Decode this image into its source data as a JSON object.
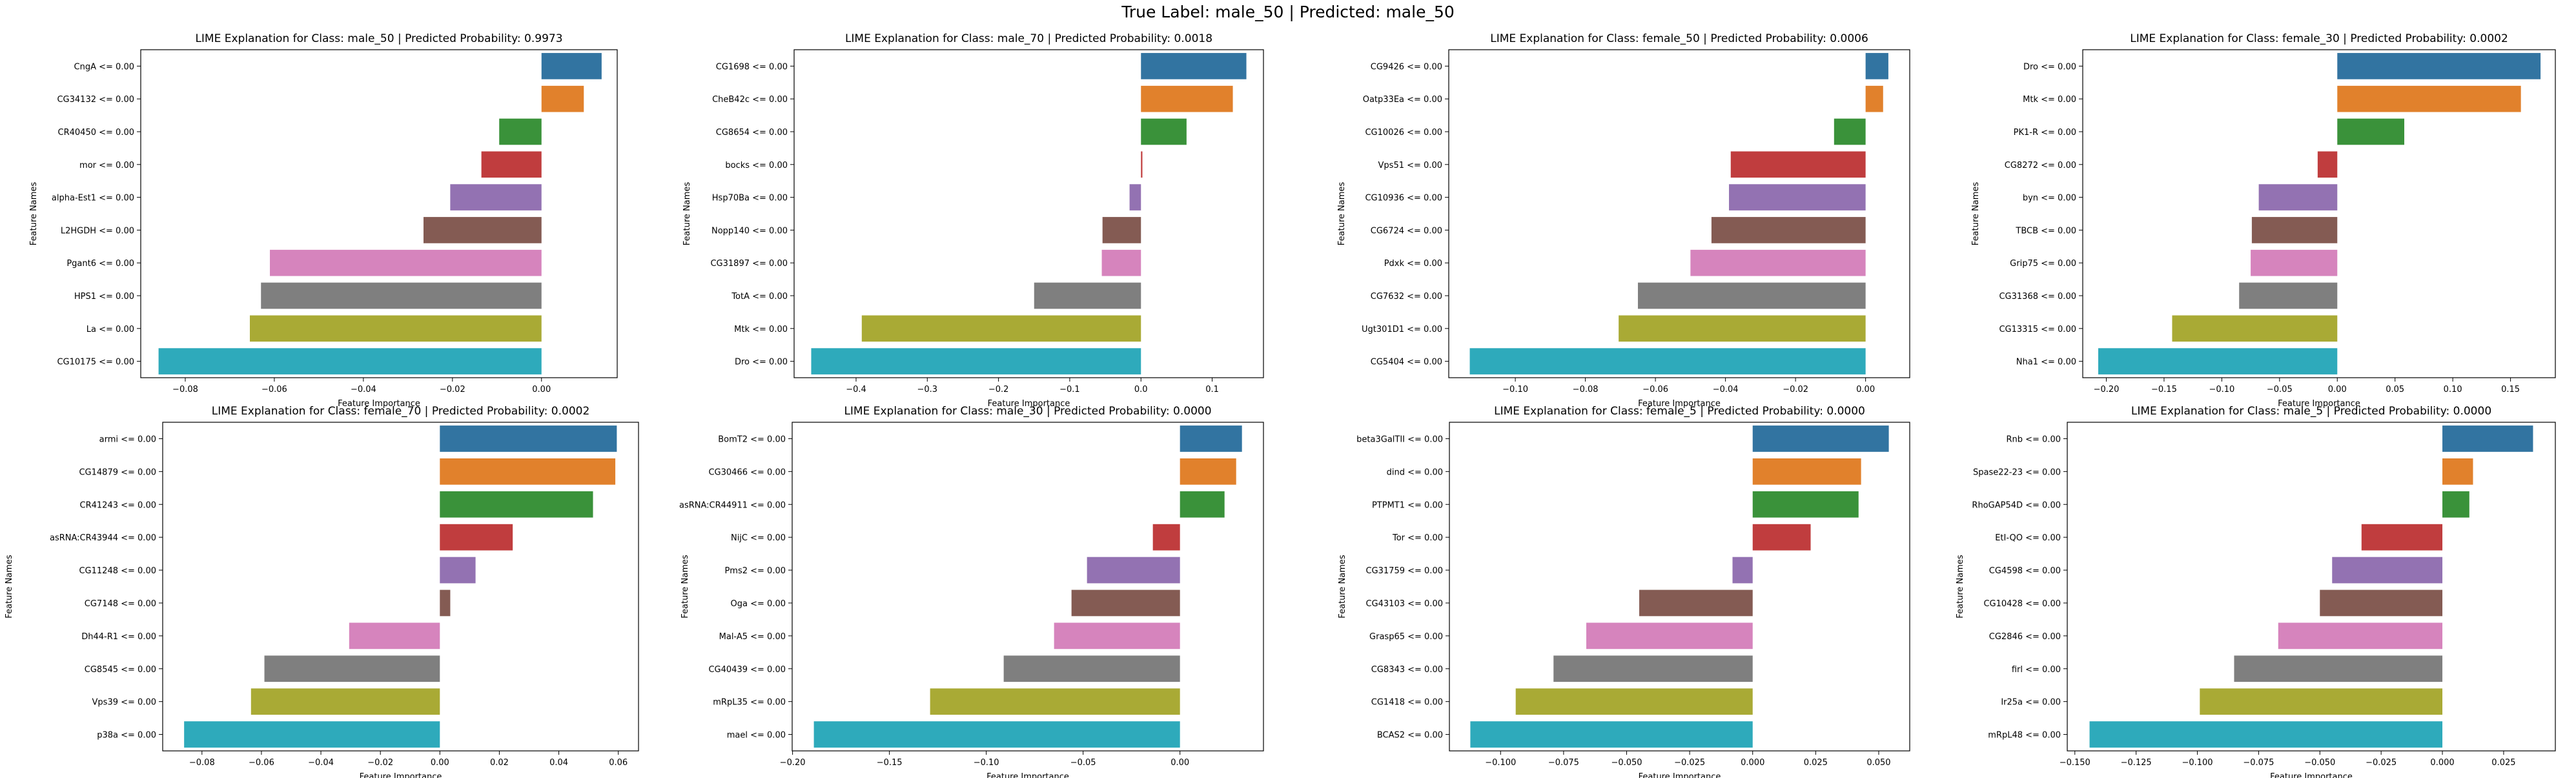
{
  "suptitle": "True Label: male_50 | Predicted: male_50",
  "colors": [
    "#3274a1",
    "#e1812c",
    "#3a923a",
    "#c03d3e",
    "#9372b2",
    "#845b53",
    "#d684bd",
    "#7f7f7f",
    "#a9aa35",
    "#2eaabb"
  ],
  "chart_data": [
    {
      "type": "bar",
      "orientation": "horizontal",
      "title": "LIME Explanation for Class: male_50 | Predicted Probability: 0.9973",
      "xlabel": "Feature Importance",
      "ylabel": "Feature Names",
      "categories": [
        "CngA <= 0.00",
        "CG34132 <= 0.00",
        "CR40450 <= 0.00",
        "mor <= 0.00",
        "alpha-Est1 <= 0.00",
        "L2HGDH <= 0.00",
        "Pgant6 <= 0.00",
        "HPS1 <= 0.00",
        "La <= 0.00",
        "CG10175 <= 0.00"
      ],
      "values": [
        0.0135,
        0.0095,
        -0.0095,
        -0.0135,
        -0.0205,
        -0.0265,
        -0.061,
        -0.063,
        -0.0655,
        -0.086
      ],
      "xlim": [
        -0.09,
        0.017
      ],
      "xticks": [
        -0.08,
        -0.06,
        -0.04,
        -0.02,
        0.0
      ],
      "xtick_labels": [
        "−0.08",
        "−0.06",
        "−0.04",
        "−0.02",
        "0.00"
      ]
    },
    {
      "type": "bar",
      "orientation": "horizontal",
      "title": "LIME Explanation for Class: male_70 | Predicted Probability: 0.0018",
      "xlabel": "Feature Importance",
      "ylabel": "Feature Names",
      "categories": [
        "CG1698 <= 0.00",
        "CheB42c <= 0.00",
        "CG8654 <= 0.00",
        "bocks <= 0.00",
        "Hsp70Ba <= 0.00",
        "Nopp140 <= 0.00",
        "CG31897 <= 0.00",
        "TotA <= 0.00",
        "Mtk <= 0.00",
        "Dro <= 0.00"
      ],
      "values": [
        0.148,
        0.129,
        0.064,
        0.002,
        -0.016,
        -0.054,
        -0.055,
        -0.15,
        -0.392,
        -0.463
      ],
      "xlim": [
        -0.487,
        0.172
      ],
      "xticks": [
        -0.4,
        -0.3,
        -0.2,
        -0.1,
        0.0,
        0.1
      ],
      "xtick_labels": [
        "−0.4",
        "−0.3",
        "−0.2",
        "−0.1",
        "0.0",
        "0.1"
      ]
    },
    {
      "type": "bar",
      "orientation": "horizontal",
      "title": "LIME Explanation for Class: female_50 | Predicted Probability: 0.0006",
      "xlabel": "Feature Importance",
      "ylabel": "Feature Names",
      "categories": [
        "CG9426 <= 0.00",
        "Oatp33Ea <= 0.00",
        "CG10026 <= 0.00",
        "Vps51 <= 0.00",
        "CG10936 <= 0.00",
        "CG6724 <= 0.00",
        "Pdxk <= 0.00",
        "CG7632 <= 0.00",
        "Ugt301D1 <= 0.00",
        "CG5404 <= 0.00"
      ],
      "values": [
        0.0065,
        0.005,
        -0.009,
        -0.0385,
        -0.039,
        -0.044,
        -0.05,
        -0.065,
        -0.0705,
        -0.113
      ],
      "xlim": [
        -0.119,
        0.0126
      ],
      "xticks": [
        -0.1,
        -0.08,
        -0.06,
        -0.04,
        -0.02,
        0.0
      ],
      "xtick_labels": [
        "−0.10",
        "−0.08",
        "−0.06",
        "−0.04",
        "−0.02",
        "0.00"
      ]
    },
    {
      "type": "bar",
      "orientation": "horizontal",
      "title": "LIME Explanation for Class: female_30 | Predicted Probability: 0.0002",
      "xlabel": "Feature Importance",
      "ylabel": "Feature Names",
      "categories": [
        "Dro <= 0.00",
        "Mtk <= 0.00",
        "PK1-R <= 0.00",
        "CG8272 <= 0.00",
        "byn <= 0.00",
        "TBCB <= 0.00",
        "Grip75 <= 0.00",
        "CG31368 <= 0.00",
        "CG13315 <= 0.00",
        "Nha1 <= 0.00"
      ],
      "values": [
        0.176,
        0.159,
        0.058,
        -0.017,
        -0.068,
        -0.074,
        -0.075,
        -0.085,
        -0.143,
        -0.207
      ],
      "xlim": [
        -0.2204,
        0.1888
      ],
      "xticks": [
        -0.2,
        -0.15,
        -0.1,
        -0.05,
        0.0,
        0.05,
        0.1,
        0.15
      ],
      "xtick_labels": [
        "−0.20",
        "−0.15",
        "−0.10",
        "−0.05",
        "0.00",
        "0.05",
        "0.10",
        "0.15"
      ]
    },
    {
      "type": "bar",
      "orientation": "horizontal",
      "title": "LIME Explanation for Class: female_70 | Predicted Probability: 0.0002",
      "xlabel": "Feature Importance",
      "ylabel": "Feature Names",
      "categories": [
        "armi <= 0.00",
        "CG14879 <= 0.00",
        "CR41243 <= 0.00",
        "asRNA:CR43944 <= 0.00",
        "CG11248 <= 0.00",
        "CG7148 <= 0.00",
        "Dh44-R1 <= 0.00",
        "CG8545 <= 0.00",
        "Vps39 <= 0.00",
        "p38a <= 0.00"
      ],
      "values": [
        0.0595,
        0.059,
        0.0515,
        0.0245,
        0.012,
        0.0035,
        -0.0305,
        -0.059,
        -0.0635,
        -0.086
      ],
      "xlim": [
        -0.0932,
        0.0668
      ],
      "xticks": [
        -0.08,
        -0.06,
        -0.04,
        -0.02,
        0.0,
        0.02,
        0.04,
        0.06
      ],
      "xtick_labels": [
        "−0.08",
        "−0.06",
        "−0.04",
        "−0.02",
        "0.00",
        "0.02",
        "0.04",
        "0.06"
      ]
    },
    {
      "type": "bar",
      "orientation": "horizontal",
      "title": "LIME Explanation for Class: male_30 | Predicted Probability: 0.0000",
      "xlabel": "Feature Importance",
      "ylabel": "Feature Names",
      "categories": [
        "BomT2 <= 0.00",
        "CG30466 <= 0.00",
        "asRNA:CR44911 <= 0.00",
        "NijC <= 0.00",
        "Pms2 <= 0.00",
        "Oga <= 0.00",
        "Mal-A5 <= 0.00",
        "CG40439 <= 0.00",
        "mRpL35 <= 0.00",
        "mael <= 0.00"
      ],
      "values": [
        0.032,
        0.029,
        0.023,
        -0.014,
        -0.048,
        -0.056,
        -0.065,
        -0.091,
        -0.129,
        -0.189
      ],
      "xlim": [
        -0.2002,
        0.0431
      ],
      "xticks": [
        -0.2,
        -0.15,
        -0.1,
        -0.05,
        0.0
      ],
      "xtick_labels": [
        "−0.20",
        "−0.15",
        "−0.10",
        "−0.05",
        "0.00"
      ]
    },
    {
      "type": "bar",
      "orientation": "horizontal",
      "title": "LIME Explanation for Class: female_5 | Predicted Probability: 0.0000",
      "xlabel": "Feature Importance",
      "ylabel": "Feature Names",
      "categories": [
        "beta3GalTII <= 0.00",
        "dind <= 0.00",
        "PTPMT1 <= 0.00",
        "Tor <= 0.00",
        "CG31759 <= 0.00",
        "CG43103 <= 0.00",
        "Grasp65 <= 0.00",
        "CG8343 <= 0.00",
        "CG1418 <= 0.00",
        "BCAS2 <= 0.00"
      ],
      "values": [
        0.054,
        0.043,
        0.042,
        0.023,
        -0.008,
        -0.045,
        -0.066,
        -0.079,
        -0.094,
        -0.112
      ],
      "xlim": [
        -0.1203,
        0.0623
      ],
      "xticks": [
        -0.1,
        -0.075,
        -0.05,
        -0.025,
        0.0,
        0.025,
        0.05
      ],
      "xtick_labels": [
        "−0.100",
        "−0.075",
        "−0.050",
        "−0.025",
        "0.000",
        "0.025",
        "0.050"
      ]
    },
    {
      "type": "bar",
      "orientation": "horizontal",
      "title": "LIME Explanation for Class: male_5 | Predicted Probability: 0.0000",
      "xlabel": "Feature Importance",
      "ylabel": "Feature Names",
      "categories": [
        "Rnb <= 0.00",
        "Spase22-23 <= 0.00",
        "RhoGAP54D <= 0.00",
        "EtI-QO <= 0.00",
        "CG4598 <= 0.00",
        "CG10428 <= 0.00",
        "CG2846 <= 0.00",
        "firl <= 0.00",
        "Ir25a <= 0.00",
        "mRpL48 <= 0.00"
      ],
      "values": [
        0.037,
        0.0125,
        0.011,
        -0.033,
        -0.045,
        -0.05,
        -0.067,
        -0.085,
        -0.099,
        -0.144
      ],
      "xlim": [
        -0.1531,
        0.0461
      ],
      "xticks": [
        -0.15,
        -0.125,
        -0.1,
        -0.075,
        -0.05,
        -0.025,
        0.0,
        0.025
      ],
      "xtick_labels": [
        "−0.150",
        "−0.125",
        "−0.100",
        "−0.075",
        "−0.050",
        "−0.025",
        "0.000",
        "0.025"
      ]
    }
  ]
}
